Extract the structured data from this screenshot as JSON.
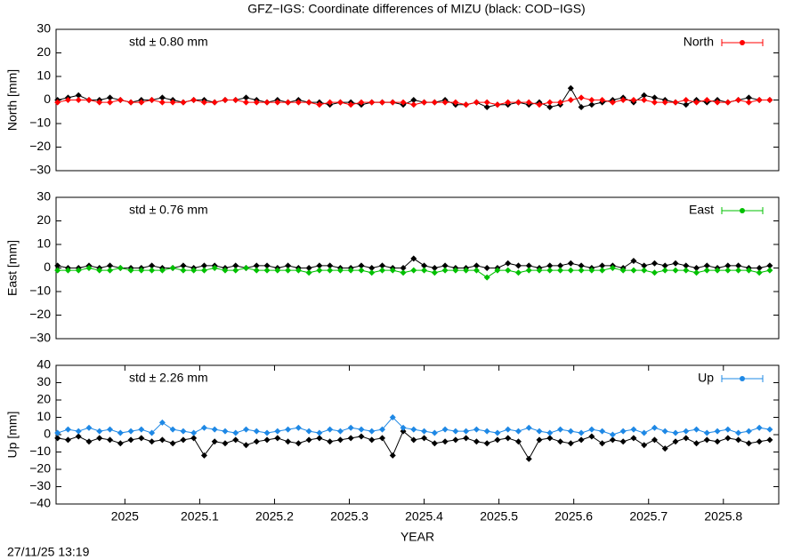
{
  "title": "GFZ−IGS: Coordinate differences of MIZU (black: COD−IGS)",
  "timestamp": "27/11/25 13:19",
  "chart_data": [
    {
      "type": "line",
      "ylabel": "North [mm]",
      "annotation": "std ± 0.80 mm",
      "xlim": [
        2024.908,
        2025.874
      ],
      "ylim": [
        -30,
        30
      ],
      "yticks": [
        {
          "value": -30,
          "label": "−30"
        },
        {
          "value": -20,
          "label": "−20"
        },
        {
          "value": -10,
          "label": "−10"
        },
        0,
        10,
        20,
        30
      ],
      "x": [
        2024.91,
        2024.924,
        2024.938,
        2024.952,
        2024.966,
        2024.98,
        2024.994,
        2025.008,
        2025.022,
        2025.036,
        2025.05,
        2025.064,
        2025.078,
        2025.092,
        2025.106,
        2025.12,
        2025.134,
        2025.148,
        2025.162,
        2025.176,
        2025.19,
        2025.204,
        2025.218,
        2025.232,
        2025.246,
        2025.26,
        2025.274,
        2025.288,
        2025.302,
        2025.316,
        2025.33,
        2025.344,
        2025.358,
        2025.372,
        2025.386,
        2025.4,
        2025.414,
        2025.428,
        2025.442,
        2025.456,
        2025.47,
        2025.484,
        2025.498,
        2025.512,
        2025.526,
        2025.54,
        2025.554,
        2025.568,
        2025.582,
        2025.596,
        2025.61,
        2025.624,
        2025.638,
        2025.652,
        2025.666,
        2025.68,
        2025.694,
        2025.708,
        2025.722,
        2025.736,
        2025.75,
        2025.764,
        2025.778,
        2025.792,
        2025.806,
        2025.82,
        2025.834,
        2025.848,
        2025.862
      ],
      "series": [
        {
          "color": "#000000",
          "values": [
            0,
            1,
            2,
            0,
            0,
            1,
            0,
            -1,
            0,
            0,
            1,
            0,
            -1,
            0,
            0,
            -1,
            0,
            0,
            1,
            0,
            -1,
            0,
            -1,
            0,
            -1,
            -1,
            -2,
            -1,
            -1,
            -2,
            -1,
            -1,
            -1,
            -2,
            0,
            -1,
            -1,
            0,
            -2,
            -2,
            -1,
            -3,
            -2,
            -2,
            -1,
            -2,
            -1,
            -3,
            -2,
            5,
            -3,
            -2,
            -1,
            0,
            1,
            -1,
            2,
            1,
            0,
            -1,
            -2,
            0,
            -1,
            0,
            -1,
            0,
            1,
            0,
            0
          ]
        },
        {
          "name": "North",
          "color": "#ff0000",
          "values": [
            -1,
            0,
            0,
            0,
            -1,
            -1,
            0,
            -1,
            -1,
            0,
            -1,
            -1,
            -1,
            0,
            -1,
            -1,
            0,
            0,
            -1,
            -1,
            -1,
            -1,
            -1,
            -1,
            -1,
            -2,
            -1,
            -1,
            -2,
            -1,
            -1,
            -1,
            -1,
            -1,
            -2,
            -1,
            -1,
            -1,
            -1,
            -2,
            -1,
            -1,
            -2,
            -1,
            -1,
            -1,
            -2,
            -1,
            -1,
            0,
            1,
            0,
            0,
            -1,
            0,
            0,
            0,
            -1,
            -1,
            -1,
            0,
            -1,
            0,
            -1,
            -1,
            0,
            -1,
            0,
            0
          ]
        }
      ]
    },
    {
      "type": "line",
      "ylabel": "East [mm]",
      "annotation": "std ± 0.76 mm",
      "xlim": [
        2024.908,
        2025.874
      ],
      "ylim": [
        -30,
        30
      ],
      "yticks": [
        {
          "value": -30,
          "label": "−30"
        },
        {
          "value": -20,
          "label": "−20"
        },
        {
          "value": -10,
          "label": "−10"
        },
        0,
        10,
        20,
        30
      ],
      "x": [
        2024.91,
        2024.924,
        2024.938,
        2024.952,
        2024.966,
        2024.98,
        2024.994,
        2025.008,
        2025.022,
        2025.036,
        2025.05,
        2025.064,
        2025.078,
        2025.092,
        2025.106,
        2025.12,
        2025.134,
        2025.148,
        2025.162,
        2025.176,
        2025.19,
        2025.204,
        2025.218,
        2025.232,
        2025.246,
        2025.26,
        2025.274,
        2025.288,
        2025.302,
        2025.316,
        2025.33,
        2025.344,
        2025.358,
        2025.372,
        2025.386,
        2025.4,
        2025.414,
        2025.428,
        2025.442,
        2025.456,
        2025.47,
        2025.484,
        2025.498,
        2025.512,
        2025.526,
        2025.54,
        2025.554,
        2025.568,
        2025.582,
        2025.596,
        2025.61,
        2025.624,
        2025.638,
        2025.652,
        2025.666,
        2025.68,
        2025.694,
        2025.708,
        2025.722,
        2025.736,
        2025.75,
        2025.764,
        2025.778,
        2025.792,
        2025.806,
        2025.82,
        2025.834,
        2025.848,
        2025.862
      ],
      "series": [
        {
          "color": "#000000",
          "values": [
            1,
            0,
            0,
            1,
            0,
            1,
            0,
            0,
            0,
            1,
            0,
            0,
            1,
            0,
            1,
            1,
            0,
            1,
            0,
            1,
            1,
            0,
            1,
            0,
            0,
            1,
            1,
            0,
            0,
            1,
            0,
            1,
            0,
            0,
            4,
            1,
            0,
            1,
            0,
            0,
            1,
            0,
            0,
            2,
            1,
            1,
            0,
            1,
            1,
            2,
            1,
            0,
            1,
            1,
            0,
            3,
            1,
            2,
            1,
            2,
            1,
            0,
            1,
            0,
            1,
            1,
            0,
            0,
            1
          ]
        },
        {
          "name": "East",
          "color": "#00c000",
          "values": [
            -1,
            -1,
            -1,
            0,
            -1,
            -1,
            0,
            -1,
            -1,
            -1,
            -1,
            0,
            -1,
            -1,
            -1,
            0,
            -1,
            -1,
            0,
            -1,
            -1,
            -1,
            -1,
            -1,
            -2,
            -1,
            -1,
            -1,
            -1,
            -1,
            -2,
            -1,
            -1,
            -2,
            -1,
            -1,
            -2,
            -1,
            -1,
            -1,
            -1,
            -4,
            -1,
            -1,
            -2,
            -1,
            -1,
            -1,
            -1,
            -1,
            -1,
            -1,
            -1,
            0,
            -1,
            -1,
            -1,
            -2,
            -1,
            -1,
            -1,
            -2,
            -1,
            -1,
            -1,
            -1,
            -1,
            -2,
            -1
          ]
        }
      ]
    },
    {
      "type": "line",
      "ylabel": "Up [mm]",
      "annotation": "std ± 2.26 mm",
      "xlabel": "YEAR",
      "xlim": [
        2024.908,
        2025.874
      ],
      "ylim": [
        -40,
        40
      ],
      "xticks": [
        2025,
        2025.1,
        2025.2,
        2025.3,
        2025.4,
        2025.5,
        2025.6,
        2025.7,
        2025.8
      ],
      "yticks": [
        {
          "value": -40,
          "label": "−40"
        },
        {
          "value": -30,
          "label": "−30"
        },
        {
          "value": -20,
          "label": "−20"
        },
        {
          "value": -10,
          "label": "−10"
        },
        0,
        10,
        20,
        30,
        40
      ],
      "x": [
        2024.91,
        2024.924,
        2024.938,
        2024.952,
        2024.966,
        2024.98,
        2024.994,
        2025.008,
        2025.022,
        2025.036,
        2025.05,
        2025.064,
        2025.078,
        2025.092,
        2025.106,
        2025.12,
        2025.134,
        2025.148,
        2025.162,
        2025.176,
        2025.19,
        2025.204,
        2025.218,
        2025.232,
        2025.246,
        2025.26,
        2025.274,
        2025.288,
        2025.302,
        2025.316,
        2025.33,
        2025.344,
        2025.358,
        2025.372,
        2025.386,
        2025.4,
        2025.414,
        2025.428,
        2025.442,
        2025.456,
        2025.47,
        2025.484,
        2025.498,
        2025.512,
        2025.526,
        2025.54,
        2025.554,
        2025.568,
        2025.582,
        2025.596,
        2025.61,
        2025.624,
        2025.638,
        2025.652,
        2025.666,
        2025.68,
        2025.694,
        2025.708,
        2025.722,
        2025.736,
        2025.75,
        2025.764,
        2025.778,
        2025.792,
        2025.806,
        2025.82,
        2025.834,
        2025.848,
        2025.862
      ],
      "series": [
        {
          "color": "#000000",
          "values": [
            -2,
            -3,
            -1,
            -4,
            -2,
            -3,
            -5,
            -3,
            -2,
            -4,
            -3,
            -5,
            -3,
            -2,
            -12,
            -4,
            -5,
            -3,
            -6,
            -4,
            -3,
            -2,
            -4,
            -5,
            -3,
            -2,
            -4,
            -3,
            -2,
            -1,
            -3,
            -2,
            -12,
            2,
            -3,
            -2,
            -5,
            -4,
            -3,
            -2,
            -4,
            -5,
            -3,
            -2,
            -4,
            -14,
            -3,
            -2,
            -4,
            -5,
            -3,
            -1,
            -5,
            -3,
            -4,
            -2,
            -6,
            -3,
            -8,
            -4,
            -2,
            -5,
            -3,
            -4,
            -2,
            -3,
            -5,
            -4,
            -3
          ]
        },
        {
          "name": "Up",
          "color": "#1e88e5",
          "values": [
            1,
            3,
            2,
            4,
            2,
            3,
            1,
            2,
            3,
            1,
            7,
            3,
            2,
            1,
            4,
            3,
            2,
            1,
            3,
            2,
            1,
            2,
            3,
            4,
            2,
            1,
            3,
            2,
            4,
            3,
            2,
            3,
            10,
            4,
            3,
            2,
            1,
            3,
            2,
            2,
            3,
            2,
            1,
            3,
            2,
            4,
            2,
            1,
            3,
            2,
            1,
            3,
            2,
            0,
            2,
            3,
            1,
            4,
            2,
            1,
            2,
            3,
            1,
            2,
            3,
            1,
            2,
            4,
            3
          ]
        }
      ]
    }
  ]
}
